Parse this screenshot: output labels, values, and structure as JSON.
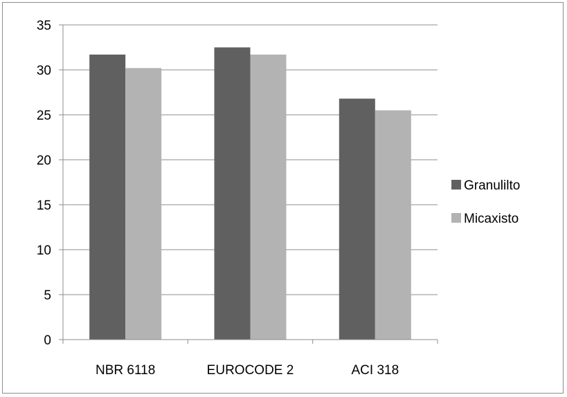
{
  "chart_data": {
    "type": "bar",
    "categories": [
      "NBR 6118",
      "EUROCODE 2",
      "ACI 318"
    ],
    "series": [
      {
        "name": "Granulilto",
        "color": "#606060",
        "values": [
          31.7,
          32.5,
          26.8
        ]
      },
      {
        "name": "Micaxisto",
        "color": "#b3b3b3",
        "values": [
          30.2,
          31.7,
          25.5
        ]
      }
    ],
    "ylim": [
      0,
      35
    ],
    "yticks": [
      "0",
      "5",
      "10",
      "15",
      "20",
      "25",
      "30",
      "35"
    ],
    "grid": true,
    "legend_position": "right"
  }
}
